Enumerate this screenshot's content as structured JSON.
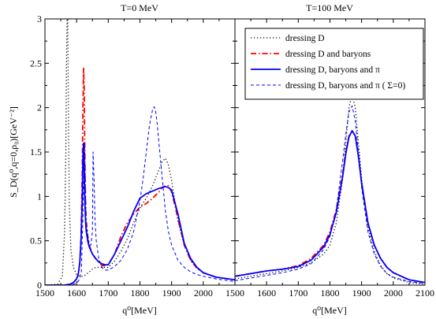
{
  "chart_data": [
    {
      "type": "line",
      "title": "T=0 MeV",
      "xlabel": "q⁰[MeV]",
      "ylabel": "S_D(q⁰,q=0,ρ₀)[GeV⁻²]",
      "xlim": [
        1500,
        2100
      ],
      "ylim": [
        0,
        3
      ],
      "xticks": [
        "1500",
        "1600",
        "1700",
        "1800",
        "1900",
        "2000"
      ],
      "yticks": [
        "0",
        "0.5",
        "1",
        "1.5",
        "2",
        "2.5",
        "3"
      ],
      "grid": false,
      "series": [
        {
          "name": "dressing D",
          "color": "#000000",
          "style": "dotted",
          "x": [
            1500,
            1540,
            1555,
            1562,
            1566,
            1568,
            1570,
            1572,
            1574,
            1577,
            1582,
            1590,
            1600,
            1610,
            1620,
            1630,
            1640,
            1650,
            1660,
            1670,
            1680,
            1690,
            1700,
            1720,
            1740,
            1760,
            1780,
            1800,
            1820,
            1840,
            1860,
            1870,
            1880,
            1885,
            1890,
            1900,
            1910,
            1920,
            1940,
            1960,
            1980,
            2000,
            2040,
            2100
          ],
          "y": [
            0,
            0.01,
            0.1,
            0.6,
            1.5,
            2.5,
            3.0,
            3.0,
            2.0,
            0.9,
            0.4,
            0.2,
            0.12,
            0.1,
            0.1,
            0.12,
            0.15,
            0.18,
            0.2,
            0.2,
            0.2,
            0.2,
            0.2,
            0.27,
            0.38,
            0.52,
            0.7,
            0.87,
            0.98,
            1.12,
            1.3,
            1.39,
            1.43,
            1.4,
            1.35,
            1.18,
            0.95,
            0.72,
            0.45,
            0.28,
            0.19,
            0.14,
            0.09,
            0.06
          ]
        },
        {
          "name": "dressing D and baryons",
          "color": "#ff0000",
          "style": "dashdot",
          "x": [
            1500,
            1560,
            1580,
            1590,
            1600,
            1605,
            1610,
            1614,
            1618,
            1620,
            1622,
            1624,
            1626,
            1628,
            1630,
            1635,
            1640,
            1650,
            1660,
            1670,
            1680,
            1690,
            1700,
            1720,
            1740,
            1760,
            1780,
            1800,
            1820,
            1840,
            1860,
            1870,
            1880,
            1890,
            1900,
            1920,
            1940,
            1960,
            1980,
            2000,
            2040,
            2100
          ],
          "y": [
            0,
            0.0,
            0.01,
            0.03,
            0.07,
            0.12,
            0.25,
            0.55,
            1.3,
            2.0,
            2.45,
            2.2,
            1.5,
            1.0,
            0.75,
            0.55,
            0.45,
            0.35,
            0.3,
            0.27,
            0.22,
            0.22,
            0.23,
            0.35,
            0.55,
            0.7,
            0.8,
            0.88,
            0.92,
            0.98,
            1.05,
            1.1,
            1.12,
            1.12,
            1.05,
            0.75,
            0.45,
            0.28,
            0.19,
            0.14,
            0.09,
            0.06
          ]
        },
        {
          "name": "dressing D, baryons and π",
          "color": "#0000ff",
          "style": "solid",
          "x": [
            1500,
            1560,
            1580,
            1590,
            1600,
            1605,
            1610,
            1614,
            1618,
            1620,
            1622,
            1624,
            1626,
            1628,
            1630,
            1635,
            1640,
            1650,
            1660,
            1670,
            1680,
            1690,
            1700,
            1720,
            1740,
            1760,
            1780,
            1800,
            1820,
            1840,
            1860,
            1870,
            1880,
            1890,
            1900,
            1920,
            1940,
            1960,
            1980,
            2000,
            2040,
            2100
          ],
          "y": [
            0,
            0.0,
            0.01,
            0.03,
            0.07,
            0.12,
            0.25,
            0.5,
            1.0,
            1.45,
            1.6,
            1.3,
            0.95,
            0.75,
            0.62,
            0.5,
            0.43,
            0.35,
            0.3,
            0.26,
            0.24,
            0.23,
            0.23,
            0.35,
            0.5,
            0.65,
            0.83,
            0.98,
            1.03,
            1.06,
            1.09,
            1.1,
            1.11,
            1.1,
            1.07,
            0.8,
            0.47,
            0.3,
            0.2,
            0.14,
            0.09,
            0.06
          ]
        },
        {
          "name": "dressing D, baryons and π ( Σ=0)",
          "color": "#0000ff",
          "style": "dashed",
          "x": [
            1500,
            1560,
            1590,
            1600,
            1610,
            1615,
            1620,
            1625,
            1630,
            1640,
            1645,
            1650,
            1652,
            1655,
            1658,
            1662,
            1670,
            1680,
            1690,
            1700,
            1720,
            1740,
            1760,
            1780,
            1800,
            1810,
            1820,
            1830,
            1840,
            1845,
            1850,
            1855,
            1860,
            1870,
            1880,
            1890,
            1900,
            1920,
            1940,
            1960,
            1980,
            2000,
            2040,
            2100
          ],
          "y": [
            0,
            0.0,
            0.01,
            0.02,
            0.07,
            0.15,
            0.8,
            1.6,
            0.7,
            0.45,
            0.45,
            0.6,
            1.5,
            1.2,
            0.75,
            0.5,
            0.3,
            0.2,
            0.17,
            0.17,
            0.21,
            0.28,
            0.4,
            0.6,
            0.95,
            1.2,
            1.5,
            1.8,
            1.98,
            2.01,
            1.95,
            1.8,
            1.6,
            1.22,
            0.85,
            0.6,
            0.45,
            0.28,
            0.2,
            0.15,
            0.12,
            0.1,
            0.07,
            0.04
          ]
        }
      ]
    },
    {
      "type": "line",
      "title": "T=100 MeV",
      "xlabel": "q⁰[MeV]",
      "ylabel": "",
      "xlim": [
        1500,
        2100
      ],
      "ylim": [
        0,
        3
      ],
      "xticks": [
        "1500",
        "1600",
        "1700",
        "1800",
        "1900",
        "2000",
        "2100"
      ],
      "grid": false,
      "legend": "top-right",
      "series": [
        {
          "name": "dressing D",
          "color": "#000000",
          "style": "dotted",
          "x": [
            1500,
            1550,
            1600,
            1650,
            1700,
            1740,
            1780,
            1800,
            1820,
            1840,
            1850,
            1860,
            1870,
            1880,
            1890,
            1900,
            1920,
            1940,
            1960,
            1980,
            2000,
            2050,
            2100
          ],
          "y": [
            0.07,
            0.1,
            0.13,
            0.16,
            0.2,
            0.25,
            0.35,
            0.45,
            0.7,
            1.2,
            1.6,
            2.0,
            2.15,
            2.0,
            1.6,
            1.2,
            0.65,
            0.38,
            0.22,
            0.13,
            0.08,
            0.03,
            0.01
          ]
        },
        {
          "name": "dressing D and baryons",
          "color": "#ff0000",
          "style": "dashdot",
          "x": [
            1500,
            1550,
            1600,
            1650,
            1700,
            1740,
            1780,
            1800,
            1820,
            1840,
            1850,
            1860,
            1870,
            1880,
            1890,
            1900,
            1920,
            1940,
            1960,
            1980,
            2000,
            2050,
            2100
          ],
          "y": [
            0.1,
            0.13,
            0.16,
            0.18,
            0.22,
            0.3,
            0.45,
            0.6,
            0.85,
            1.25,
            1.5,
            1.68,
            1.74,
            1.68,
            1.45,
            1.15,
            0.7,
            0.45,
            0.3,
            0.2,
            0.14,
            0.06,
            0.03
          ]
        },
        {
          "name": "dressing D, baryons and π",
          "color": "#0000ff",
          "style": "solid",
          "x": [
            1500,
            1550,
            1600,
            1650,
            1700,
            1740,
            1780,
            1800,
            1820,
            1840,
            1850,
            1860,
            1870,
            1880,
            1890,
            1900,
            1920,
            1940,
            1960,
            1980,
            2000,
            2050,
            2100
          ],
          "y": [
            0.1,
            0.13,
            0.16,
            0.18,
            0.21,
            0.28,
            0.43,
            0.57,
            0.82,
            1.22,
            1.48,
            1.67,
            1.74,
            1.68,
            1.45,
            1.15,
            0.7,
            0.45,
            0.3,
            0.2,
            0.14,
            0.06,
            0.03
          ]
        },
        {
          "name": "dressing D, baryons and π ( Σ=0)",
          "color": "#0000ff",
          "style": "dashed",
          "x": [
            1500,
            1550,
            1600,
            1650,
            1700,
            1740,
            1780,
            1800,
            1820,
            1840,
            1850,
            1860,
            1870,
            1880,
            1890,
            1900,
            1920,
            1940,
            1960,
            1980,
            2000,
            2050,
            2100
          ],
          "y": [
            0.05,
            0.08,
            0.11,
            0.14,
            0.18,
            0.24,
            0.4,
            0.55,
            0.85,
            1.4,
            1.7,
            1.95,
            2.02,
            1.85,
            1.5,
            1.1,
            0.6,
            0.35,
            0.21,
            0.13,
            0.09,
            0.04,
            0.02
          ]
        }
      ]
    }
  ]
}
